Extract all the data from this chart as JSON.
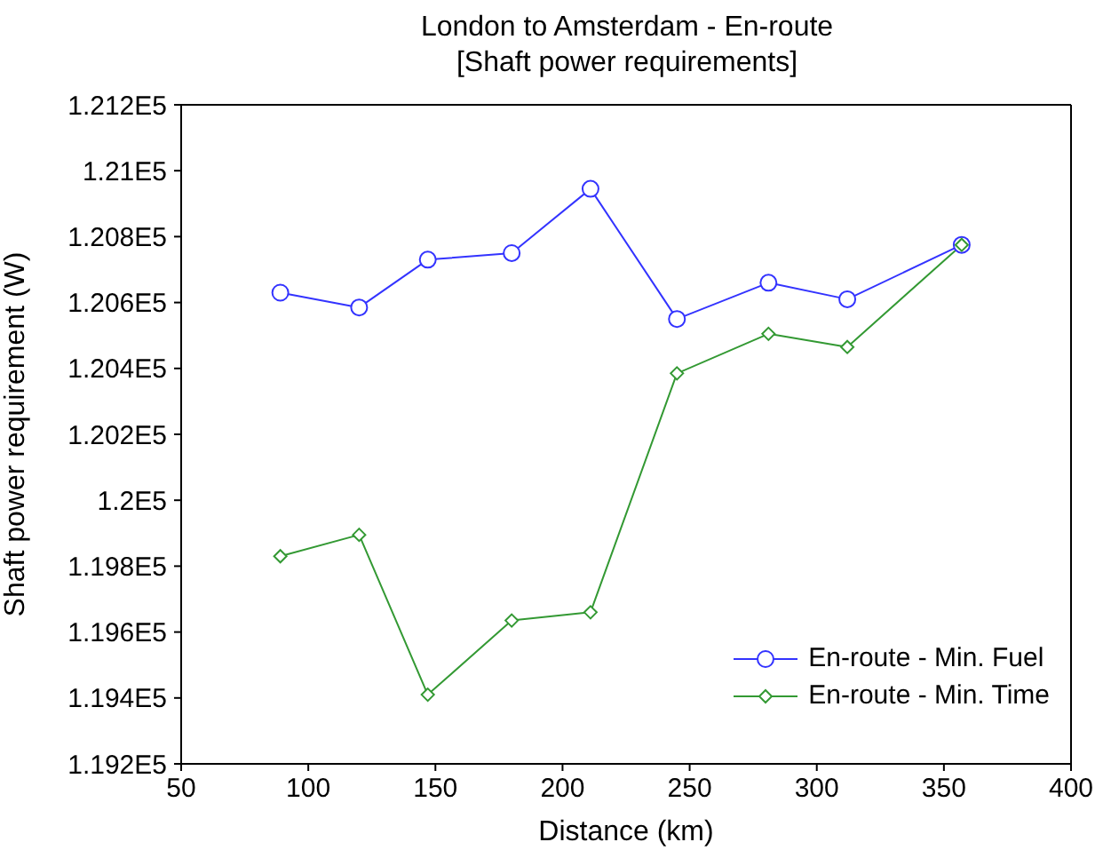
{
  "chart_data": {
    "type": "line",
    "title": "London to Amsterdam - En-route",
    "subtitle": "[Shaft power requirements]",
    "xlabel": "Distance (km)",
    "ylabel": "Shaft power requirement (W)",
    "xlim": [
      50,
      400
    ],
    "xticks": [
      50,
      100,
      150,
      200,
      250,
      300,
      350,
      400
    ],
    "ylim": [
      119200,
      121200
    ],
    "yticks": [
      {
        "value": 119200,
        "label": "1.192E5"
      },
      {
        "value": 119400,
        "label": "1.194E5"
      },
      {
        "value": 119600,
        "label": "1.196E5"
      },
      {
        "value": 119800,
        "label": "1.198E5"
      },
      {
        "value": 120000,
        "label": "1.2E5"
      },
      {
        "value": 120200,
        "label": "1.202E5"
      },
      {
        "value": 120400,
        "label": "1.204E5"
      },
      {
        "value": 120600,
        "label": "1.206E5"
      },
      {
        "value": 120800,
        "label": "1.208E5"
      },
      {
        "value": 121000,
        "label": "1.21E5"
      },
      {
        "value": 121200,
        "label": "1.212E5"
      }
    ],
    "x": [
      89,
      120,
      147,
      180,
      211,
      245,
      281,
      312,
      357
    ],
    "series": [
      {
        "name": "En-route - Min. Fuel",
        "color": "#3333ff",
        "marker": "circle",
        "values": [
          120630,
          120585,
          120730,
          120750,
          120945,
          120550,
          120660,
          120610,
          120775
        ]
      },
      {
        "name": "En-route - Min. Time",
        "color": "#339933",
        "marker": "diamond",
        "values": [
          119830,
          119895,
          119410,
          119635,
          119660,
          120385,
          120505,
          120465,
          120775
        ]
      }
    ],
    "grid": false,
    "legend": "bottom right",
    "line_style": "solid"
  }
}
